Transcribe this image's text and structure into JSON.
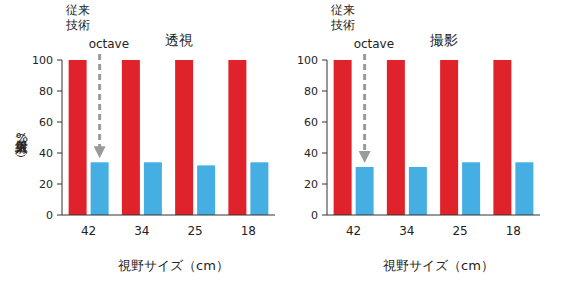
{
  "chart_data": [
    {
      "type": "bar",
      "title": "透視",
      "x_label": "視野サイズ（cm）",
      "y_label": "入射線量（%）",
      "categories": [
        "42",
        "34",
        "25",
        "18"
      ],
      "series": [
        {
          "name": "従来技術",
          "color": "#e0232b",
          "values": [
            100,
            100,
            100,
            100
          ]
        },
        {
          "name": "octave",
          "color": "#45aee3",
          "values": [
            34,
            34,
            32,
            34
          ]
        }
      ],
      "ylim": [
        0,
        100
      ],
      "yticks": [
        0,
        20,
        40,
        60,
        80,
        100
      ]
    },
    {
      "type": "bar",
      "title": "撮影",
      "x_label": "視野サイズ（cm）",
      "categories": [
        "42",
        "34",
        "25",
        "18"
      ],
      "series": [
        {
          "name": "従来技術",
          "color": "#e0232b",
          "values": [
            100,
            100,
            100,
            100
          ]
        },
        {
          "name": "octave",
          "color": "#45aee3",
          "values": [
            31,
            31,
            34,
            34
          ]
        }
      ],
      "ylim": [
        0,
        100
      ],
      "yticks": [
        0,
        20,
        40,
        60,
        80,
        100
      ]
    }
  ]
}
